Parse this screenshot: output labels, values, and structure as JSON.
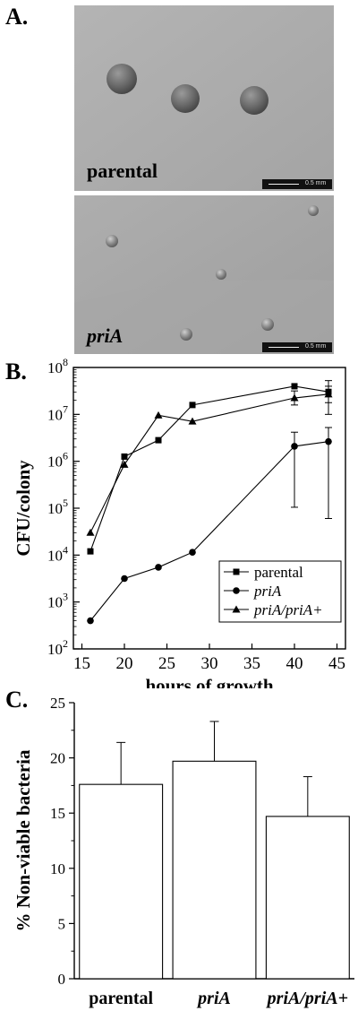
{
  "panel_a": {
    "letter": "A.",
    "top_label": "parental",
    "bottom_label": "priA",
    "scale_text": "0.5 mm"
  },
  "panel_b": {
    "letter": "B."
  },
  "panel_c": {
    "letter": "C."
  },
  "colors": {
    "ink": "#000000",
    "photo_bg": "#a9a9a9"
  },
  "chart_data": [
    {
      "type": "line",
      "xlabel": "hours of growth",
      "ylabel": "CFU/colony",
      "xlim": [
        14,
        46
      ],
      "ylim_log10": [
        2,
        8
      ],
      "y_scale": "log",
      "xticks": [
        15,
        20,
        25,
        30,
        35,
        40,
        45
      ],
      "yticks": [
        2,
        3,
        4,
        5,
        6,
        7,
        8
      ],
      "ytick_base": "10",
      "legend": "bottom-right",
      "series": [
        {
          "name": "parental",
          "marker": "square",
          "x": [
            16,
            20,
            24,
            28,
            40,
            44
          ],
          "y_log10": [
            4.08,
            6.1,
            6.45,
            7.2,
            7.6,
            7.48
          ],
          "err_up_log10": [
            null,
            null,
            null,
            null,
            null,
            7.72
          ],
          "err_down_log10": [
            null,
            null,
            null,
            null,
            null,
            7.0
          ]
        },
        {
          "name": "priA",
          "marker": "circle",
          "x": [
            16,
            20,
            24,
            28,
            40,
            44
          ],
          "y_log10": [
            2.6,
            3.5,
            3.74,
            4.06,
            6.32,
            6.42
          ],
          "err_up_log10": [
            null,
            null,
            null,
            null,
            6.62,
            6.72
          ],
          "err_down_log10": [
            null,
            null,
            null,
            null,
            5.02,
            4.78
          ]
        },
        {
          "name": "priA/priA+",
          "marker": "triangle",
          "x": [
            16,
            20,
            24,
            28,
            40,
            44
          ],
          "y_log10": [
            4.48,
            5.93,
            6.98,
            6.85,
            7.35,
            7.43
          ],
          "err_up_log10": [
            null,
            null,
            null,
            null,
            7.5,
            7.6
          ],
          "err_down_log10": [
            null,
            null,
            null,
            null,
            7.2,
            7.25
          ]
        }
      ]
    },
    {
      "type": "bar",
      "ylabel": "% Non-viable bacteria",
      "ylim": [
        0,
        25
      ],
      "yticks": [
        0,
        5,
        10,
        15,
        20,
        25
      ],
      "categories": [
        "parental",
        "priA",
        "priA/priA+"
      ],
      "values": [
        17.6,
        19.7,
        14.7
      ],
      "errors": [
        3.8,
        3.6,
        3.6
      ]
    }
  ]
}
